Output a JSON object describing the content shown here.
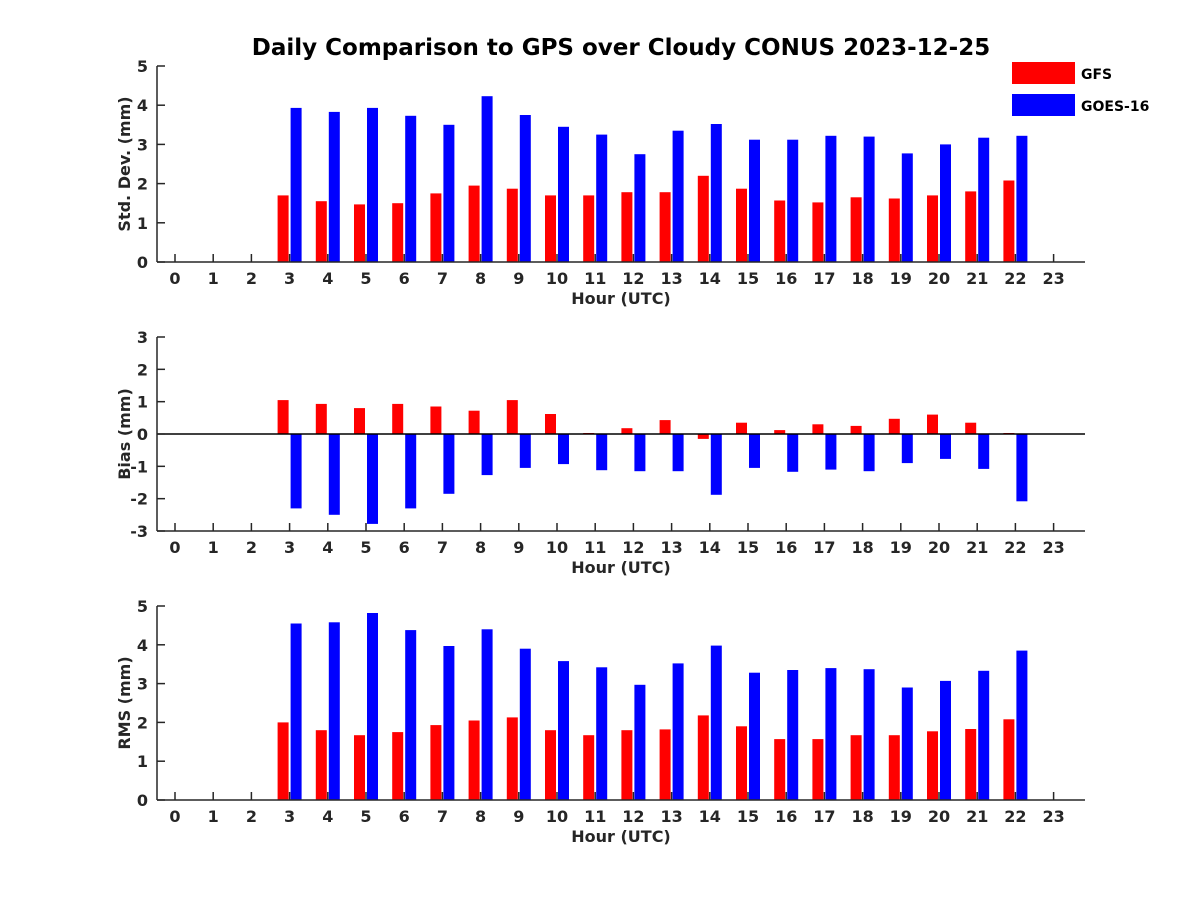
{
  "title": "Daily Comparison to GPS over Cloudy CONUS 2023-12-25",
  "legend": [
    {
      "name": "GFS",
      "color": "#ff0000"
    },
    {
      "name": "GOES-16",
      "color": "#0000ff"
    }
  ],
  "chart_data": [
    {
      "type": "bar",
      "ylabel": "Std. Dev. (mm)",
      "xlabel": "Hour (UTC)",
      "categories": [
        "0",
        "1",
        "2",
        "3",
        "4",
        "5",
        "6",
        "7",
        "8",
        "9",
        "10",
        "11",
        "12",
        "13",
        "14",
        "15",
        "16",
        "17",
        "18",
        "19",
        "20",
        "21",
        "22",
        "23"
      ],
      "ylim": [
        0,
        5
      ],
      "yticks": [
        0,
        1,
        2,
        3,
        4,
        5
      ],
      "legend_position": "top-right",
      "series": [
        {
          "name": "GFS",
          "color": "#ff0000",
          "values": [
            null,
            null,
            null,
            1.7,
            1.55,
            1.47,
            1.5,
            1.75,
            1.95,
            1.87,
            1.7,
            1.7,
            1.78,
            1.78,
            2.2,
            1.87,
            1.57,
            1.52,
            1.65,
            1.62,
            1.7,
            1.8,
            2.08,
            null
          ]
        },
        {
          "name": "GOES-16",
          "color": "#0000ff",
          "values": [
            null,
            null,
            null,
            3.93,
            3.83,
            3.93,
            3.73,
            3.5,
            4.23,
            3.75,
            3.45,
            3.25,
            2.75,
            3.35,
            3.52,
            3.12,
            3.12,
            3.22,
            3.2,
            2.77,
            3.0,
            3.17,
            3.22,
            null
          ]
        }
      ]
    },
    {
      "type": "bar",
      "ylabel": "Bias (mm)",
      "xlabel": "Hour (UTC)",
      "categories": [
        "0",
        "1",
        "2",
        "3",
        "4",
        "5",
        "6",
        "7",
        "8",
        "9",
        "10",
        "11",
        "12",
        "13",
        "14",
        "15",
        "16",
        "17",
        "18",
        "19",
        "20",
        "21",
        "22",
        "23"
      ],
      "ylim": [
        -3,
        3
      ],
      "yticks": [
        -3,
        -2,
        -1,
        0,
        1,
        2,
        3
      ],
      "zero_line": true,
      "series": [
        {
          "name": "GFS",
          "color": "#ff0000",
          "values": [
            null,
            null,
            null,
            1.05,
            0.93,
            0.8,
            0.93,
            0.85,
            0.72,
            1.05,
            0.62,
            0.03,
            0.18,
            0.43,
            -0.15,
            0.35,
            0.12,
            0.3,
            0.25,
            0.47,
            0.6,
            0.35,
            0.03,
            null
          ]
        },
        {
          "name": "GOES-16",
          "color": "#0000ff",
          "values": [
            null,
            null,
            null,
            -2.3,
            -2.5,
            -2.78,
            -2.3,
            -1.85,
            -1.27,
            -1.05,
            -0.93,
            -1.12,
            -1.15,
            -1.15,
            -1.88,
            -1.05,
            -1.17,
            -1.1,
            -1.15,
            -0.9,
            -0.77,
            -1.08,
            -2.08,
            null
          ]
        }
      ]
    },
    {
      "type": "bar",
      "ylabel": "RMS (mm)",
      "xlabel": "Hour (UTC)",
      "categories": [
        "0",
        "1",
        "2",
        "3",
        "4",
        "5",
        "6",
        "7",
        "8",
        "9",
        "10",
        "11",
        "12",
        "13",
        "14",
        "15",
        "16",
        "17",
        "18",
        "19",
        "20",
        "21",
        "22",
        "23"
      ],
      "ylim": [
        0,
        5
      ],
      "yticks": [
        0,
        1,
        2,
        3,
        4,
        5
      ],
      "series": [
        {
          "name": "GFS",
          "color": "#ff0000",
          "values": [
            null,
            null,
            null,
            2.0,
            1.8,
            1.67,
            1.75,
            1.93,
            2.05,
            2.13,
            1.8,
            1.67,
            1.8,
            1.82,
            2.18,
            1.9,
            1.57,
            1.57,
            1.67,
            1.67,
            1.77,
            1.83,
            2.08,
            null
          ]
        },
        {
          "name": "GOES-16",
          "color": "#0000ff",
          "values": [
            null,
            null,
            null,
            4.55,
            4.58,
            4.82,
            4.38,
            3.97,
            4.4,
            3.9,
            3.58,
            3.42,
            2.97,
            3.52,
            3.98,
            3.28,
            3.35,
            3.4,
            3.37,
            2.9,
            3.07,
            3.33,
            3.85,
            null
          ]
        }
      ]
    }
  ]
}
